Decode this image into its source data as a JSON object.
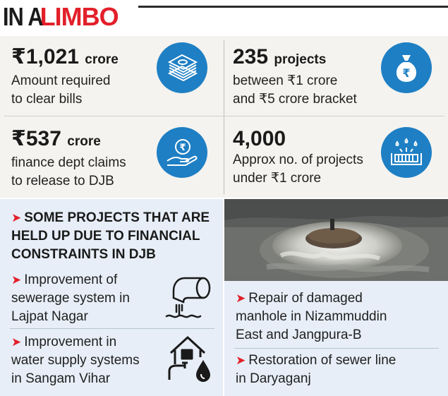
{
  "title": {
    "part1": "IN A",
    "part2": "LIMBO"
  },
  "stats": [
    {
      "value": "₹1,021",
      "unit": "crore",
      "line1": "Amount required",
      "line2": "to clear bills",
      "icon": "money-stack-icon"
    },
    {
      "value": "235",
      "unit": "projects",
      "line1": "between ₹1 crore",
      "line2": "and ₹5 crore bracket",
      "icon": "money-bag-icon"
    },
    {
      "value": "₹537",
      "unit": "crore",
      "line1": "finance dept claims",
      "line2": "to release to DJB",
      "icon": "rupee-hand-icon"
    },
    {
      "value": "4,000",
      "unit": "",
      "line1": "Approx no. of projects",
      "line2": "under ₹1 crore",
      "icon": "water-drain-icon"
    }
  ],
  "projects": {
    "heading_lines": [
      "SOME PROJECTS THAT ARE",
      "HELD UP DUE TO FINANCIAL",
      "CONSTRAINTS IN DJB"
    ],
    "items": [
      {
        "lines": [
          "Improvement of",
          "sewerage system in",
          "Lajpat Nagar"
        ],
        "icon": "sewer-pipe-icon"
      },
      {
        "lines": [
          "Improvement in",
          "water supply systems",
          "in Sangam Vihar"
        ],
        "icon": "house-water-icon"
      },
      {
        "lines": [
          "Repair of damaged",
          "manhole in Nizammuddin",
          "East and Jangpura-B"
        ]
      },
      {
        "lines": [
          "Restoration of sewer line",
          "in Daryaganj"
        ]
      }
    ]
  },
  "colors": {
    "accent_red": "#e2202a",
    "icon_blue": "#1e7fc4",
    "panel_grey": "#f4f3ef",
    "panel_blue": "#e7eef7"
  }
}
